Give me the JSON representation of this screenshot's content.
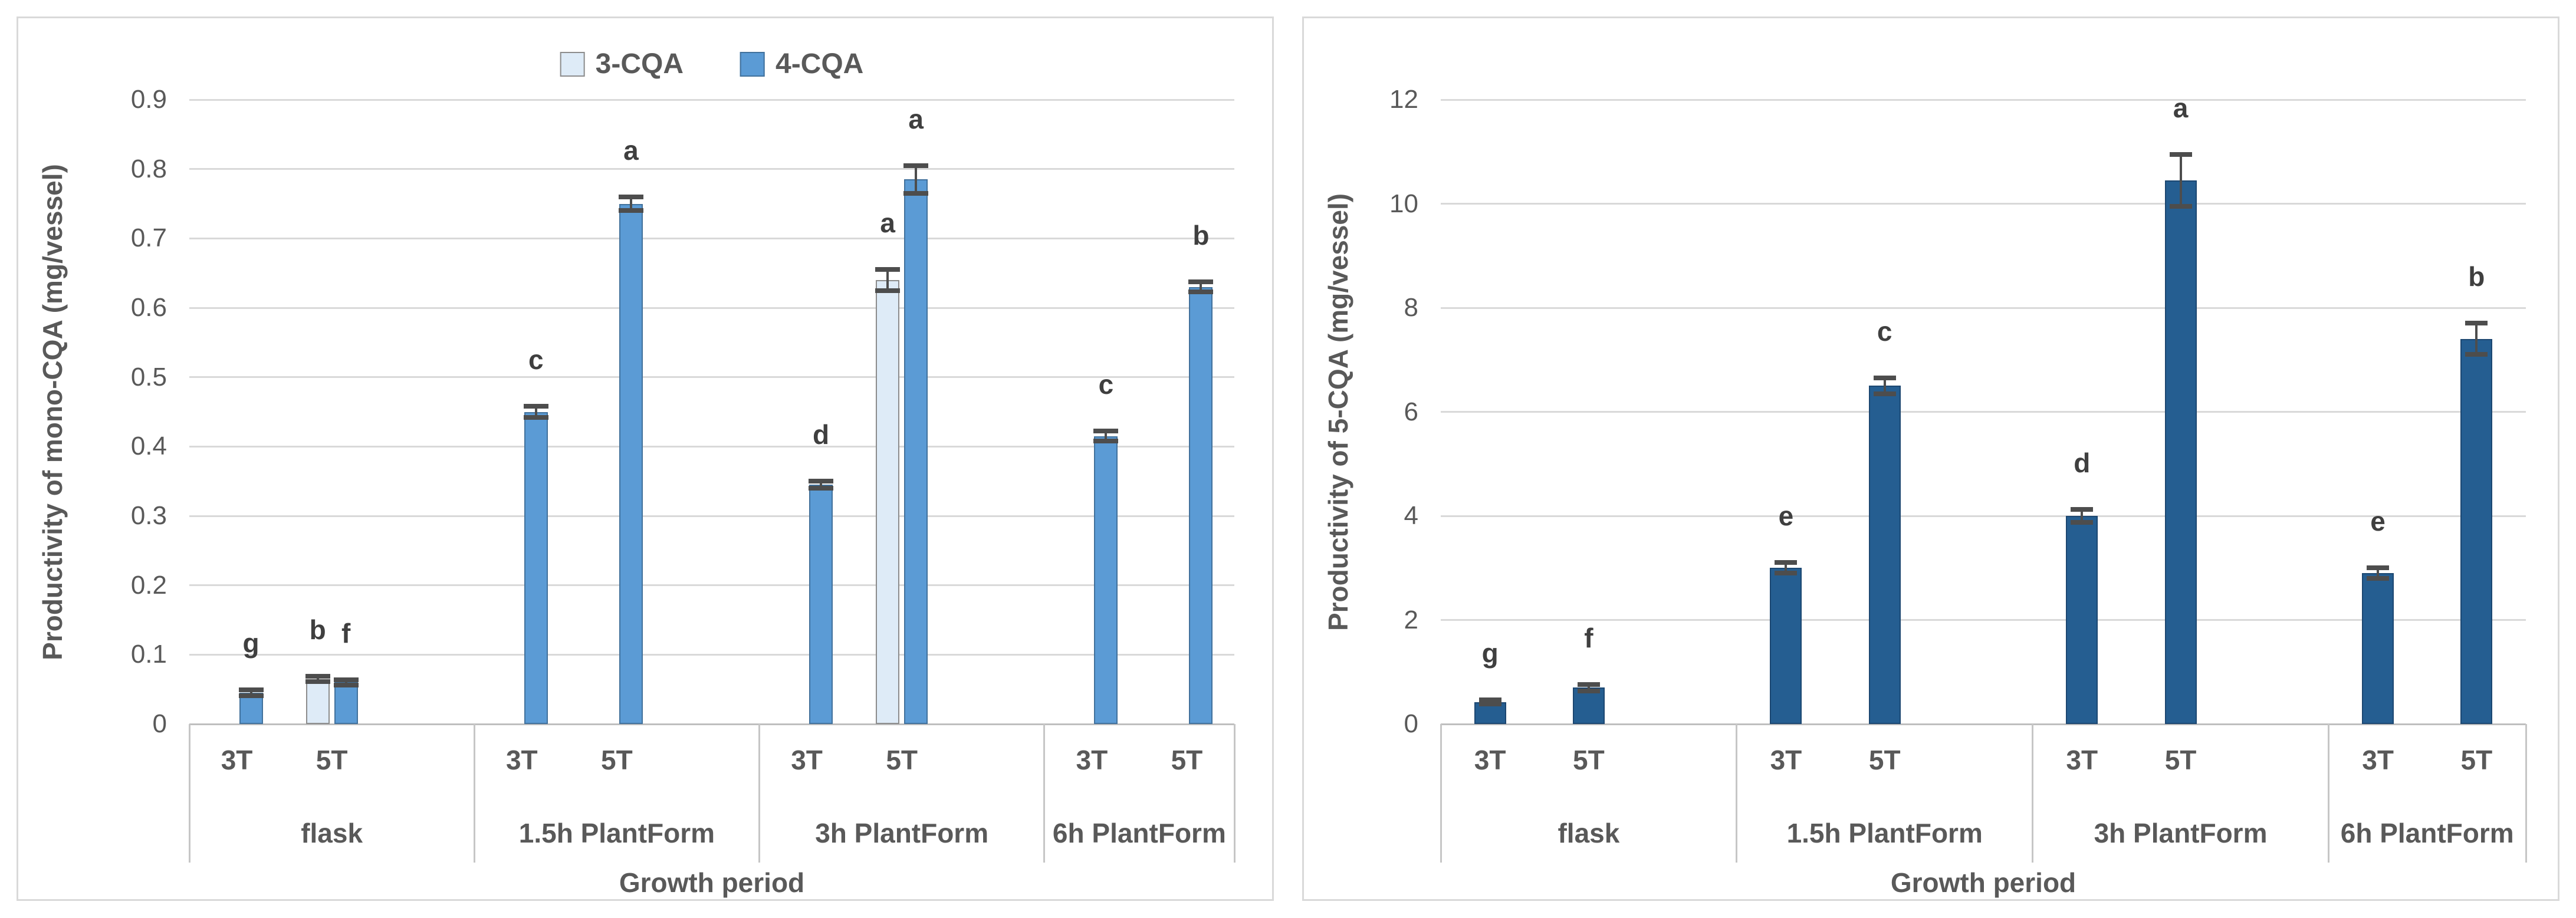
{
  "page": {
    "background": "#ffffff",
    "panel_border": "#D9D9D9"
  },
  "colors": {
    "grid": "#D9D9D9",
    "axis": "#BFBFBF",
    "text": "#595959",
    "letter_text": "#3F3F3F",
    "error_bar": "#4D4D4D"
  },
  "chart_data": [
    {
      "type": "bar",
      "ylabel": "Productivity of mono-CQA (mg/vessel)",
      "xlabel": "Growth period",
      "ylim": [
        0,
        0.9
      ],
      "yticks": [
        "0",
        "0.1",
        "0.2",
        "0.3",
        "0.4",
        "0.5",
        "0.6",
        "0.7",
        "0.8",
        "0.9"
      ],
      "grid": true,
      "legend_position": "top",
      "legend": [
        "3-CQA",
        "4-CQA"
      ],
      "series_colors": {
        "3-CQA": {
          "fill": "#DEEBF7",
          "border": "#8C8C8C"
        },
        "4-CQA": {
          "fill": "#5B9BD5",
          "border": "#41719C"
        },
        "5-CQA": {
          "fill": "#255E91",
          "border": "#1C4771"
        }
      },
      "groups": [
        {
          "label": "flask",
          "slots": [
            {
              "sub": "3T",
              "bars": [
                {
                  "series": "4-CQA",
                  "value": 0.045,
                  "error": 0.004,
                  "letter": "g"
                }
              ]
            },
            {
              "sub": "5T",
              "bars": [
                {
                  "series": "3-CQA",
                  "value": 0.065,
                  "error": 0.004,
                  "letter": "b"
                },
                {
                  "series": "4-CQA",
                  "value": 0.06,
                  "error": 0.004,
                  "letter": "f"
                }
              ]
            }
          ]
        },
        {
          "label": "1.5h PlantForm",
          "slots": [
            {
              "sub": "3T",
              "bars": [
                {
                  "series": "4-CQA",
                  "value": 0.45,
                  "error": 0.008,
                  "letter": "c"
                }
              ]
            },
            {
              "sub": "5T",
              "bars": [
                {
                  "series": "4-CQA",
                  "value": 0.75,
                  "error": 0.01,
                  "letter": "a"
                }
              ]
            }
          ]
        },
        {
          "label": "3h PlantForm",
          "slots": [
            {
              "sub": "3T",
              "bars": [
                {
                  "series": "4-CQA",
                  "value": 0.345,
                  "error": 0.005,
                  "letter": "d"
                }
              ]
            },
            {
              "sub": "5T",
              "bars": [
                {
                  "series": "3-CQA",
                  "value": 0.64,
                  "error": 0.015,
                  "letter": "a"
                },
                {
                  "series": "4-CQA",
                  "value": 0.785,
                  "error": 0.02,
                  "letter": "a"
                }
              ]
            }
          ]
        },
        {
          "label": "6h PlantForm",
          "slots": [
            {
              "sub": "3T",
              "bars": [
                {
                  "series": "4-CQA",
                  "value": 0.415,
                  "error": 0.007,
                  "letter": "c"
                }
              ]
            },
            {
              "sub": "5T",
              "bars": [
                {
                  "series": "4-CQA",
                  "value": 0.63,
                  "error": 0.007,
                  "letter": "b"
                }
              ]
            }
          ]
        }
      ]
    },
    {
      "type": "bar",
      "ylabel": "Productivity of 5-CQA (mg/vessel)",
      "xlabel": "Growth period",
      "ylim": [
        0,
        12
      ],
      "yticks": [
        "0",
        "2",
        "4",
        "6",
        "8",
        "10",
        "12"
      ],
      "grid": true,
      "legend_position": "none",
      "legend": [],
      "series_colors": {
        "3-CQA": {
          "fill": "#DEEBF7",
          "border": "#8C8C8C"
        },
        "4-CQA": {
          "fill": "#5B9BD5",
          "border": "#41719C"
        },
        "5-CQA": {
          "fill": "#255E91",
          "border": "#1C4771"
        }
      },
      "groups": [
        {
          "label": "flask",
          "slots": [
            {
              "sub": "3T",
              "bars": [
                {
                  "series": "5-CQA",
                  "value": 0.42,
                  "error": 0.04,
                  "letter": "g"
                }
              ]
            },
            {
              "sub": "5T",
              "bars": [
                {
                  "series": "5-CQA",
                  "value": 0.7,
                  "error": 0.06,
                  "letter": "f"
                }
              ]
            }
          ]
        },
        {
          "label": "1.5h PlantForm",
          "slots": [
            {
              "sub": "3T",
              "bars": [
                {
                  "series": "5-CQA",
                  "value": 3.0,
                  "error": 0.1,
                  "letter": "e"
                }
              ]
            },
            {
              "sub": "5T",
              "bars": [
                {
                  "series": "5-CQA",
                  "value": 6.5,
                  "error": 0.15,
                  "letter": "c"
                }
              ]
            }
          ]
        },
        {
          "label": "3h PlantForm",
          "slots": [
            {
              "sub": "3T",
              "bars": [
                {
                  "series": "5-CQA",
                  "value": 4.0,
                  "error": 0.12,
                  "letter": "d"
                }
              ]
            },
            {
              "sub": "5T",
              "bars": [
                {
                  "series": "5-CQA",
                  "value": 10.45,
                  "error": 0.5,
                  "letter": "a"
                }
              ]
            }
          ]
        },
        {
          "label": "6h PlantForm",
          "slots": [
            {
              "sub": "3T",
              "bars": [
                {
                  "series": "5-CQA",
                  "value": 2.9,
                  "error": 0.1,
                  "letter": "e"
                }
              ]
            },
            {
              "sub": "5T",
              "bars": [
                {
                  "series": "5-CQA",
                  "value": 7.4,
                  "error": 0.3,
                  "letter": "b"
                }
              ]
            }
          ]
        }
      ]
    }
  ]
}
